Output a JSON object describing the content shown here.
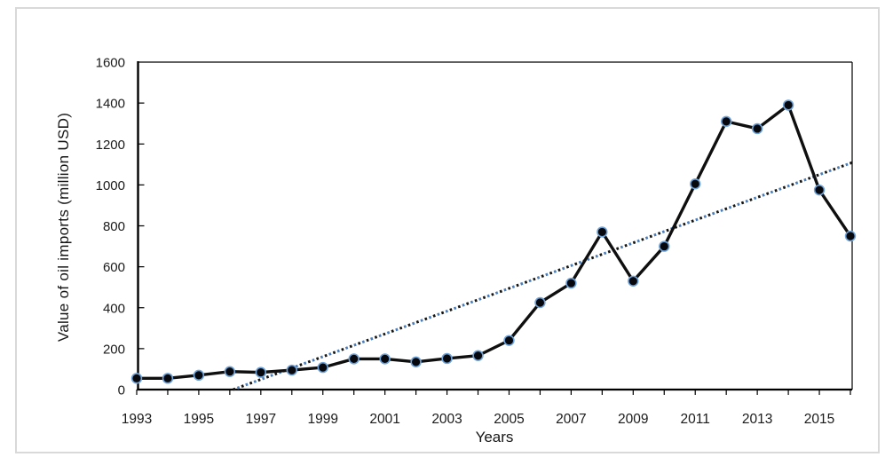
{
  "figure": {
    "background": "#ffffff",
    "border_color": "#d9d9d9"
  },
  "chart_data": {
    "type": "line",
    "title": "",
    "xlabel": "Years",
    "ylabel": "Value of oil imports (million USD)",
    "x": [
      1993,
      1994,
      1995,
      1996,
      1997,
      1998,
      1999,
      2000,
      2001,
      2002,
      2003,
      2004,
      2005,
      2006,
      2007,
      2008,
      2009,
      2010,
      2011,
      2012,
      2013,
      2014,
      2015,
      2016
    ],
    "series": [
      {
        "name": "Value of oil imports",
        "values": [
          55,
          55,
          70,
          88,
          84,
          95,
          108,
          150,
          150,
          135,
          152,
          166,
          240,
          425,
          520,
          770,
          530,
          700,
          1005,
          1310,
          1275,
          1390,
          975,
          750
        ],
        "line_color": "#0f0f0f",
        "marker": "circle",
        "marker_fill": "#06080e",
        "marker_ring": "#6fa3d8"
      }
    ],
    "trendline": {
      "type": "linear",
      "style": "dotted",
      "colors": [
        "#141414",
        "#4a7ebb"
      ]
    },
    "ylim": [
      0,
      1600
    ],
    "ytick_step": 200,
    "ytick_labels": [
      "0",
      "200",
      "400",
      "600",
      "800",
      "1000",
      "1200",
      "1400",
      "1600"
    ],
    "xtick_labels": [
      "1993",
      "1995",
      "1997",
      "1999",
      "2001",
      "2003",
      "2005",
      "2007",
      "2009",
      "2011",
      "2013",
      "2015"
    ],
    "grid": false,
    "legend": "none",
    "axis_color": "#000000",
    "tick_label_color": "#1a1a1a"
  }
}
